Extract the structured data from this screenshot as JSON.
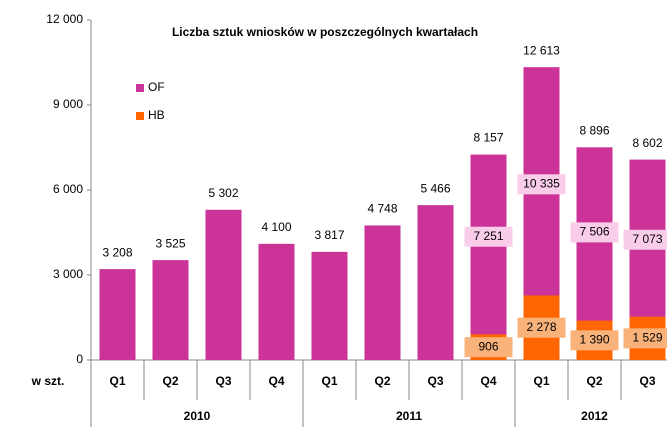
{
  "chart_data": {
    "type": "bar",
    "title": "Liczba sztuk wniosków w poszczególnych kwartałach",
    "y_label": "w szt.",
    "groups": [
      {
        "name": "2010",
        "categories": [
          "Q1",
          "Q2",
          "Q3",
          "Q4"
        ]
      },
      {
        "name": "2011",
        "categories": [
          "Q1",
          "Q2",
          "Q3",
          "Q4"
        ]
      },
      {
        "name": "2012",
        "categories": [
          "Q1",
          "Q2",
          "Q3"
        ]
      }
    ],
    "series": [
      {
        "name": "OF",
        "color": "#cc3399",
        "values": [
          3208,
          3525,
          5302,
          4100,
          3817,
          4748,
          5466,
          7251,
          10335,
          7506,
          7073
        ],
        "value_labels": [
          null,
          null,
          null,
          null,
          null,
          null,
          null,
          "7 251",
          "10 335",
          "7 506",
          "7 073"
        ]
      },
      {
        "name": "HB",
        "color": "#ff6600",
        "values": [
          null,
          null,
          null,
          null,
          null,
          null,
          null,
          906,
          2278,
          1390,
          1529
        ],
        "value_labels": [
          null,
          null,
          null,
          null,
          null,
          null,
          null,
          "906",
          "2 278",
          "1 390",
          "1 529"
        ]
      }
    ],
    "totals": [
      3208,
      3525,
      5302,
      4100,
      3817,
      4748,
      5466,
      8157,
      12613,
      8896,
      8602
    ],
    "total_labels": [
      "3 208",
      "3 525",
      "5 302",
      "4 100",
      "3 817",
      "4 748",
      "5 466",
      "8 157",
      "12 613",
      "8 896",
      "8 602"
    ],
    "ylim": [
      0,
      12000
    ],
    "yticks": [
      0,
      {
        "value": 3000,
        "label": "3 000"
      },
      {
        "value": 6000,
        "label": "6 000"
      },
      {
        "value": 9000,
        "label": "9 000"
      },
      {
        "value": 12000,
        "label": "12 000"
      }
    ],
    "grid": false,
    "legend": "upper left"
  }
}
